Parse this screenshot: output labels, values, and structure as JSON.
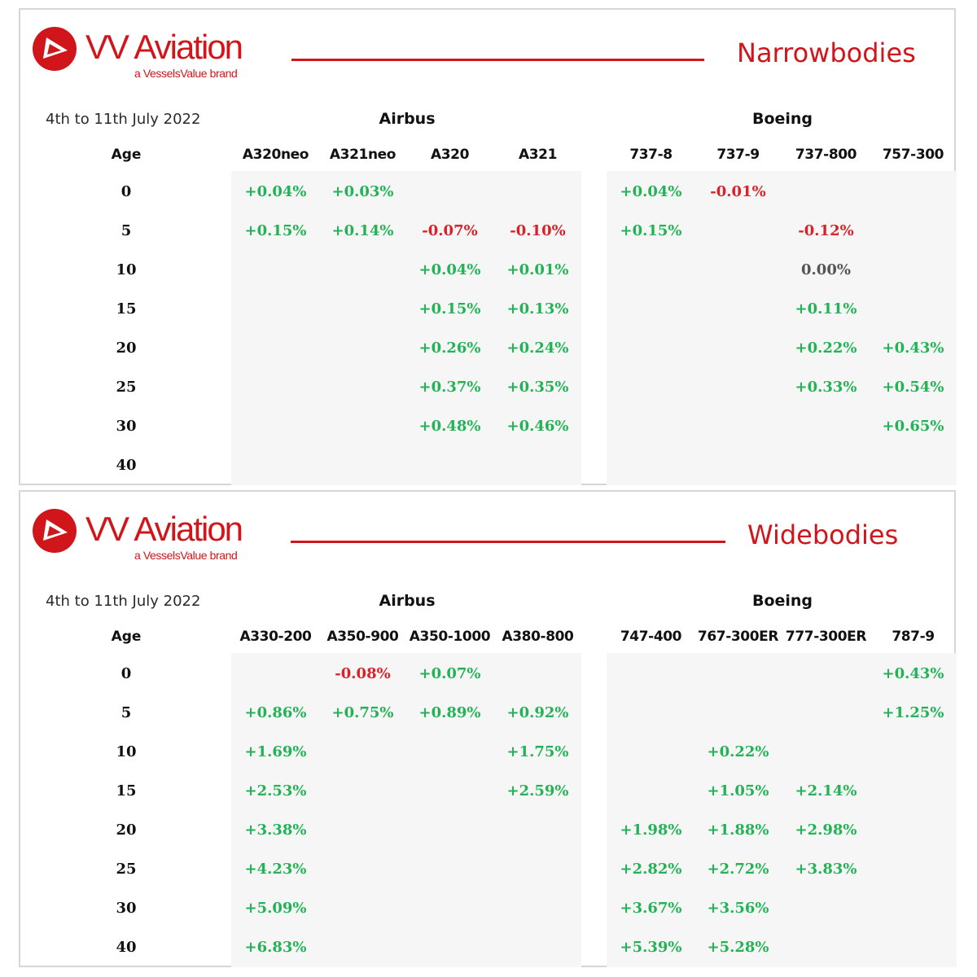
{
  "brand": {
    "name": "VV Aviation",
    "tagline": "a VesselsValue brand",
    "color": "#d0161b"
  },
  "colors": {
    "positive": "#23b356",
    "negative": "#d7222a",
    "neutral": "#555555"
  },
  "panels": [
    {
      "section": "Narrowbodies",
      "date_range": "4th to 11th July 2022",
      "age_label": "Age",
      "groups": [
        {
          "name": "Airbus",
          "models": [
            "A320neo",
            "A321neo",
            "A320",
            "A321"
          ]
        },
        {
          "name": "Boeing",
          "models": [
            "737-8",
            "737-9",
            "737-800",
            "757-300"
          ]
        }
      ],
      "ages": [
        "0",
        "5",
        "10",
        "15",
        "20",
        "25",
        "30",
        "40"
      ],
      "rows": [
        [
          "+0.04%",
          "+0.03%",
          "",
          "",
          "+0.04%",
          "-0.01%",
          "",
          ""
        ],
        [
          "+0.15%",
          "+0.14%",
          "-0.07%",
          "-0.10%",
          "+0.15%",
          "",
          "-0.12%",
          ""
        ],
        [
          "",
          "",
          "+0.04%",
          "+0.01%",
          "",
          "",
          "0.00%",
          ""
        ],
        [
          "",
          "",
          "+0.15%",
          "+0.13%",
          "",
          "",
          "+0.11%",
          ""
        ],
        [
          "",
          "",
          "+0.26%",
          "+0.24%",
          "",
          "",
          "+0.22%",
          "+0.43%"
        ],
        [
          "",
          "",
          "+0.37%",
          "+0.35%",
          "",
          "",
          "+0.33%",
          "+0.54%"
        ],
        [
          "",
          "",
          "+0.48%",
          "+0.46%",
          "",
          "",
          "",
          "+0.65%"
        ],
        [
          "",
          "",
          "",
          "",
          "",
          "",
          "",
          ""
        ]
      ]
    },
    {
      "section": "Widebodies",
      "date_range": "4th to 11th July 2022",
      "age_label": "Age",
      "groups": [
        {
          "name": "Airbus",
          "models": [
            "A330-200",
            "A350-900",
            "A350-1000",
            "A380-800"
          ]
        },
        {
          "name": "Boeing",
          "models": [
            "747-400",
            "767-300ER",
            "777-300ER",
            "787-9"
          ]
        }
      ],
      "ages": [
        "0",
        "5",
        "10",
        "15",
        "20",
        "25",
        "30",
        "40"
      ],
      "rows": [
        [
          "",
          "-0.08%",
          "+0.07%",
          "",
          "",
          "",
          "",
          "+0.43%"
        ],
        [
          "+0.86%",
          "+0.75%",
          "+0.89%",
          "+0.92%",
          "",
          "",
          "",
          "+1.25%"
        ],
        [
          "+1.69%",
          "",
          "",
          "+1.75%",
          "",
          "+0.22%",
          "",
          ""
        ],
        [
          "+2.53%",
          "",
          "",
          "+2.59%",
          "",
          "+1.05%",
          "+2.14%",
          ""
        ],
        [
          "+3.38%",
          "",
          "",
          "",
          "+1.98%",
          "+1.88%",
          "+2.98%",
          ""
        ],
        [
          "+4.23%",
          "",
          "",
          "",
          "+2.82%",
          "+2.72%",
          "+3.83%",
          ""
        ],
        [
          "+5.09%",
          "",
          "",
          "",
          "+3.67%",
          "+3.56%",
          "",
          ""
        ],
        [
          "+6.83%",
          "",
          "",
          "",
          "+5.39%",
          "+5.28%",
          "",
          ""
        ]
      ]
    }
  ]
}
